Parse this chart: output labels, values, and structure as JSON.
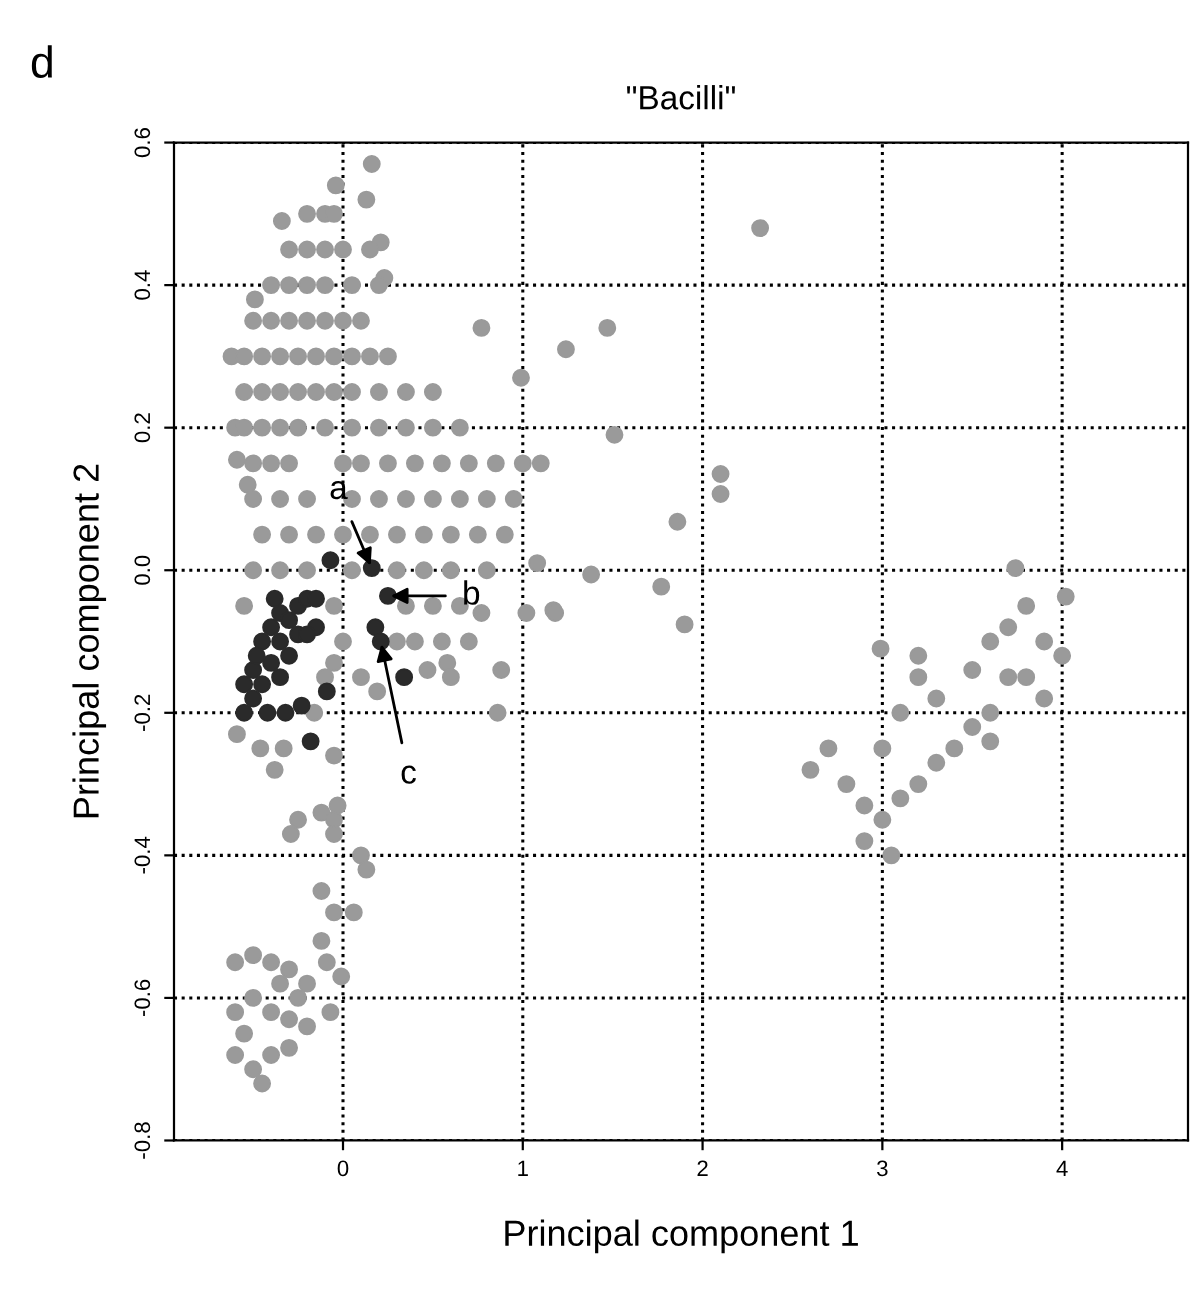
{
  "chart_data": {
    "type": "scatter",
    "title": "\"Bacilli\"",
    "xlabel": "Principal component 1",
    "ylabel": "Principal component 2",
    "xlim": [
      -0.94,
      4.7
    ],
    "ylim": [
      -0.8,
      0.6
    ],
    "xticks": [
      0,
      1,
      2,
      3,
      4
    ],
    "yticks": [
      {
        "value": -0.8,
        "label": "-0.8"
      },
      {
        "value": -0.6,
        "label": "-0.6"
      },
      {
        "value": -0.4,
        "label": "-0.4"
      },
      {
        "value": -0.2,
        "label": "-0.2"
      },
      {
        "value": 0,
        "label": "0.0"
      },
      0.2,
      0.4,
      0.6
    ],
    "grid": true,
    "marker": "circle",
    "annotations": [
      "d",
      {
        "text": "a",
        "x": 0.16,
        "y": 0.003
      },
      {
        "text": "b",
        "x": 0.25,
        "y": -0.036
      },
      {
        "text": "c",
        "x": 0.21,
        "y": -0.1
      }
    ],
    "series": [
      {
        "color": "#9a9a9a",
        "x": [
          -0.04,
          0.16,
          0.13,
          0.21,
          0.23,
          -0.62,
          -0.6,
          -0.59,
          -0.53,
          -0.34,
          -0.49,
          1.1,
          0.77,
          0.99,
          1.24,
          1.47,
          1.51,
          2.32,
          2.1,
          2.1,
          1.86,
          1.38,
          1.77,
          1.9,
          1.08,
          1.17,
          2.99,
          3.74,
          4.02,
          2.6,
          2.7,
          2.8,
          2.9,
          3.0,
          3.1,
          3.2,
          3.0,
          3.1,
          3.2,
          2.9,
          3.05,
          3.3,
          3.4,
          3.5,
          3.6,
          3.7,
          3.7,
          3.8,
          3.9,
          3.8,
          3.9,
          4.0,
          3.6,
          3.5,
          3.2,
          3.6,
          3.3,
          -0.6,
          -0.5,
          -0.4,
          -0.3,
          -0.2,
          -0.6,
          -0.5,
          -0.4,
          -0.3,
          -0.2,
          -0.6,
          -0.5,
          -0.4,
          -0.3,
          -0.45,
          -0.55,
          -0.35,
          -0.25,
          -0.12,
          -0.05,
          0.06,
          -0.12,
          -0.09,
          -0.01,
          -0.07,
          0.1,
          0.13,
          -0.12,
          -0.05,
          -0.25,
          -0.29,
          -0.05,
          -0.03,
          -0.59,
          -0.46,
          -0.38,
          -0.33,
          -0.05,
          -0.16,
          0.47,
          0.58,
          0.88,
          0.86,
          0.19,
          0.4,
          0.77,
          1.02,
          1.18,
          -0.05,
          -0.2,
          -0.1,
          -0.05,
          -0.3,
          -0.2,
          -0.1,
          0.0,
          0.15,
          -0.4,
          -0.3,
          -0.2,
          -0.1,
          0.05,
          0.2,
          -0.5,
          -0.4,
          -0.3,
          -0.2,
          -0.1,
          0.0,
          0.1,
          -0.55,
          -0.45,
          -0.35,
          -0.25,
          -0.15,
          -0.05,
          0.05,
          0.15,
          0.25,
          -0.55,
          -0.45,
          -0.35,
          -0.25,
          -0.15,
          -0.05,
          0.05,
          0.2,
          0.35,
          0.5,
          -0.55,
          -0.45,
          -0.35,
          -0.25,
          -0.1,
          0.05,
          0.2,
          0.35,
          0.5,
          0.65,
          -0.5,
          -0.4,
          -0.3,
          0.0,
          0.1,
          0.25,
          0.4,
          0.55,
          0.7,
          0.85,
          1.0,
          -0.5,
          -0.35,
          -0.2,
          0.05,
          0.2,
          0.35,
          0.5,
          0.65,
          0.8,
          0.95,
          -0.45,
          -0.3,
          -0.15,
          0.0,
          0.15,
          0.3,
          0.45,
          0.6,
          0.75,
          0.9,
          -0.5,
          -0.35,
          -0.2,
          0.05,
          0.3,
          0.45,
          0.6,
          0.8,
          -0.55,
          -0.05,
          0.35,
          0.5,
          0.65,
          0.0,
          0.3,
          0.55,
          0.7,
          -0.1,
          0.1,
          0.6
        ],
        "values": [
          0.54,
          0.57,
          0.52,
          0.46,
          0.41,
          0.3,
          0.2,
          0.155,
          0.12,
          0.49,
          0.38,
          0.15,
          0.34,
          0.27,
          0.31,
          0.34,
          0.19,
          0.48,
          0.135,
          0.107,
          0.068,
          -0.006,
          -0.023,
          -0.076,
          0.01,
          -0.056,
          -0.11,
          0.003,
          -0.037,
          -0.28,
          -0.25,
          -0.3,
          -0.33,
          -0.35,
          -0.32,
          -0.3,
          -0.25,
          -0.2,
          -0.15,
          -0.38,
          -0.4,
          -0.27,
          -0.25,
          -0.22,
          -0.2,
          -0.15,
          -0.08,
          -0.05,
          -0.1,
          -0.15,
          -0.18,
          -0.12,
          -0.1,
          -0.14,
          -0.12,
          -0.24,
          -0.18,
          -0.55,
          -0.54,
          -0.55,
          -0.56,
          -0.58,
          -0.62,
          -0.6,
          -0.62,
          -0.63,
          -0.64,
          -0.68,
          -0.7,
          -0.68,
          -0.67,
          -0.72,
          -0.65,
          -0.58,
          -0.6,
          -0.45,
          -0.48,
          -0.48,
          -0.52,
          -0.55,
          -0.57,
          -0.62,
          -0.4,
          -0.42,
          -0.34,
          -0.35,
          -0.35,
          -0.37,
          -0.37,
          -0.33,
          -0.23,
          -0.25,
          -0.28,
          -0.25,
          -0.26,
          -0.2,
          -0.14,
          -0.13,
          -0.14,
          -0.2,
          -0.17,
          -0.1,
          -0.06,
          -0.06,
          -0.06,
          -0.13,
          0.5,
          0.5,
          0.5,
          0.45,
          0.45,
          0.45,
          0.45,
          0.45,
          0.4,
          0.4,
          0.4,
          0.4,
          0.4,
          0.4,
          0.35,
          0.35,
          0.35,
          0.35,
          0.35,
          0.35,
          0.35,
          0.3,
          0.3,
          0.3,
          0.3,
          0.3,
          0.3,
          0.3,
          0.3,
          0.3,
          0.25,
          0.25,
          0.25,
          0.25,
          0.25,
          0.25,
          0.25,
          0.25,
          0.25,
          0.25,
          0.2,
          0.2,
          0.2,
          0.2,
          0.2,
          0.2,
          0.2,
          0.2,
          0.2,
          0.2,
          0.15,
          0.15,
          0.15,
          0.15,
          0.15,
          0.15,
          0.15,
          0.15,
          0.15,
          0.15,
          0.15,
          0.1,
          0.1,
          0.1,
          0.1,
          0.1,
          0.1,
          0.1,
          0.1,
          0.1,
          0.1,
          0.05,
          0.05,
          0.05,
          0.05,
          0.05,
          0.05,
          0.05,
          0.05,
          0.05,
          0.05,
          0.0,
          0.0,
          0.0,
          0.0,
          0.0,
          0.0,
          0.0,
          0.0,
          -0.05,
          -0.05,
          -0.05,
          -0.05,
          -0.05,
          -0.1,
          -0.1,
          -0.1,
          -0.1,
          -0.15,
          -0.15,
          -0.15
        ]
      },
      {
        "color": "#2a2a2a",
        "x": [
          -0.55,
          -0.5,
          -0.5,
          -0.45,
          -0.45,
          -0.4,
          -0.4,
          -0.35,
          -0.35,
          -0.3,
          -0.3,
          -0.25,
          -0.25,
          -0.2,
          -0.15,
          -0.15,
          -0.55,
          -0.48,
          -0.38,
          -0.2,
          -0.42,
          -0.35,
          -0.07,
          0.16,
          0.25,
          0.18,
          0.21,
          0.34,
          -0.09,
          -0.23,
          -0.32,
          -0.18
        ],
        "values": [
          -0.2,
          -0.18,
          -0.14,
          -0.16,
          -0.1,
          -0.13,
          -0.08,
          -0.1,
          -0.06,
          -0.07,
          -0.12,
          -0.05,
          -0.09,
          -0.04,
          -0.04,
          -0.08,
          -0.16,
          -0.12,
          -0.04,
          -0.09,
          -0.2,
          -0.15,
          0.014,
          0.003,
          -0.036,
          -0.08,
          -0.1,
          -0.15,
          -0.17,
          -0.19,
          -0.2,
          -0.24
        ]
      }
    ]
  }
}
